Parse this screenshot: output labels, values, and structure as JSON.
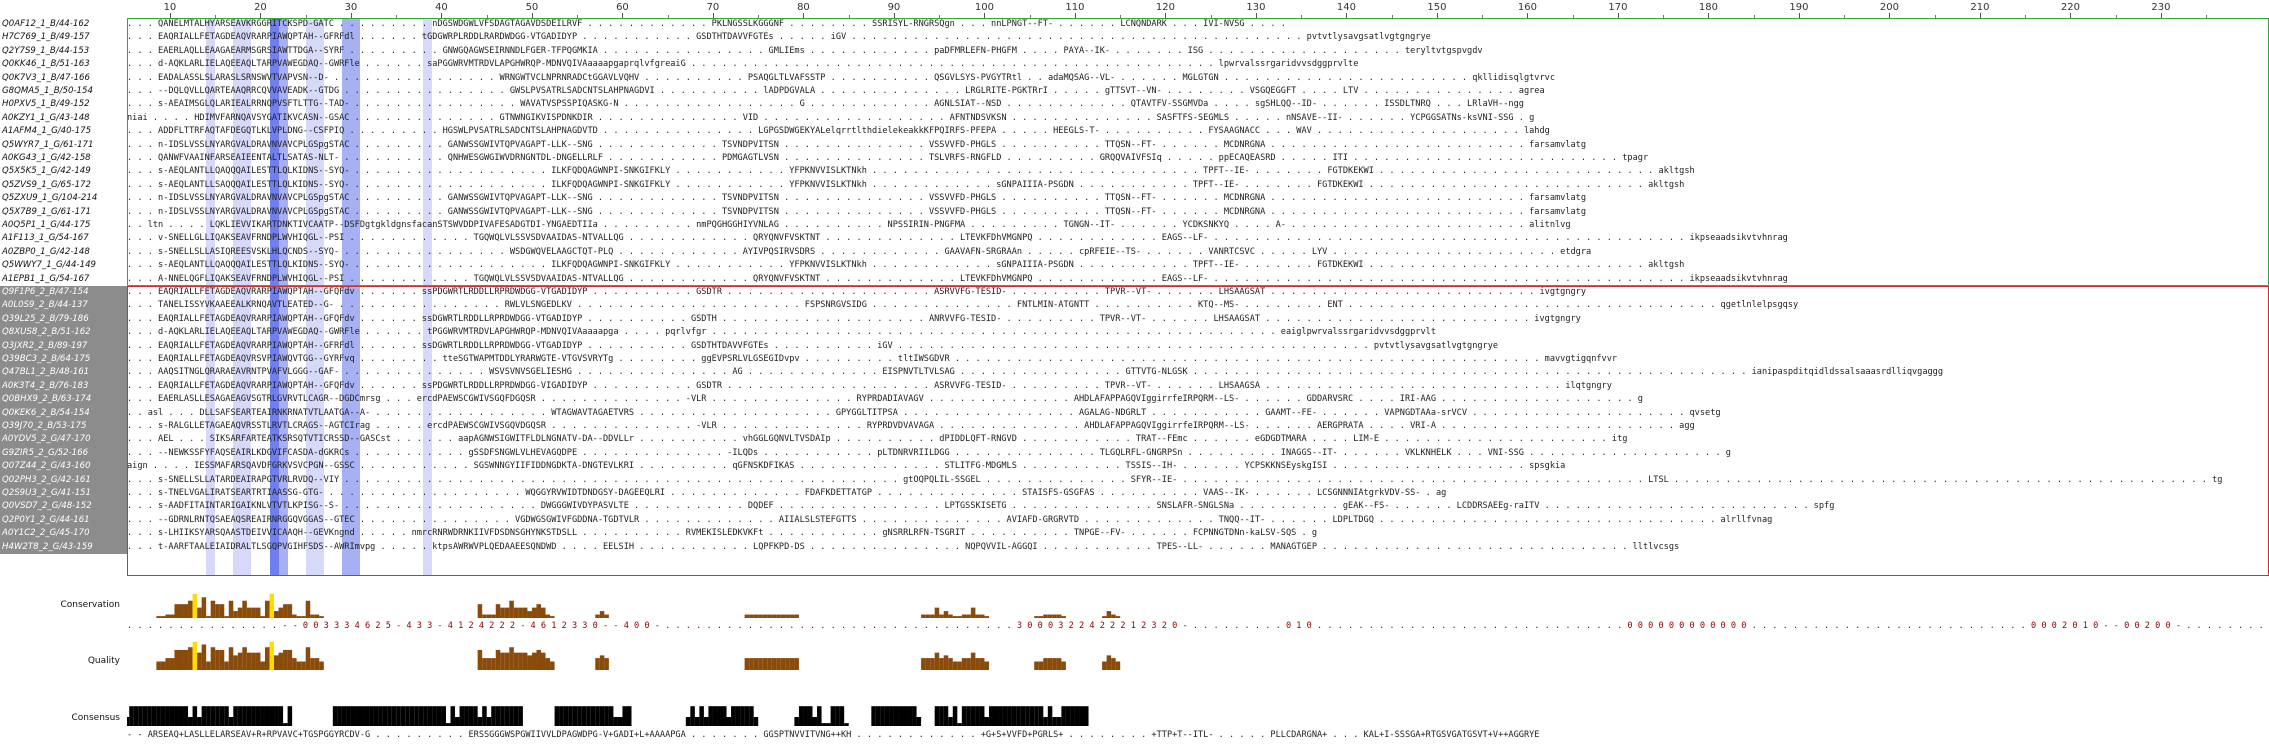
{
  "ruler": {
    "ticks": [
      "10",
      "20",
      "30",
      "40",
      "50",
      "60",
      "70",
      "80",
      "90",
      "100",
      "110",
      "120",
      "130",
      "140",
      "150",
      "160",
      "170",
      "180",
      "190",
      "200",
      "210",
      "220",
      "230"
    ],
    "tick_values": [
      10,
      20,
      30,
      40,
      50,
      60,
      70,
      80,
      90,
      100,
      110,
      120,
      130,
      140,
      150,
      160,
      170,
      180,
      190,
      200,
      210,
      220,
      230
    ]
  },
  "colors": {
    "group1_box": "#33aa33",
    "group2_box": "#cc3333",
    "name_highlight_group2": "#8c8c8c",
    "conserved_blue_strong": "#6f7ff0",
    "conserved_blue_mid": "#a7b0f2",
    "conserved_blue_light": "#d6daf8",
    "conservation_digits": "#8b0000",
    "histogram_brown": "#8a4a0a",
    "histogram_yellow": "#ffdc00",
    "consensus_black": "#000000"
  },
  "highlight_columns": [
    {
      "col": 14,
      "shade": "light"
    },
    {
      "col": 17,
      "shade": "light"
    },
    {
      "col": 18,
      "shade": "light"
    },
    {
      "col": 21,
      "shade": "strong"
    },
    {
      "col": 22,
      "shade": "mid"
    },
    {
      "col": 25,
      "shade": "light"
    },
    {
      "col": 26,
      "shade": "light"
    },
    {
      "col": 29,
      "shade": "mid"
    },
    {
      "col": 30,
      "shade": "mid"
    },
    {
      "col": 38,
      "shade": "light"
    }
  ],
  "sequences": [
    {
      "name": "Q0AF12_1_B/44-162",
      "group": 1,
      "seq": ". . . QANELMTALHYARSEAVKRGGRITCKSPD-GATC . . . . . . . . . nDGSWDGWLVFSDAGTAGAVDSDEILRVF . . . . . . . . . . . . PKLNGSSLKGGGNF . . . . . . . . SSRISYL-RNGRSQgn . . . nnLPNGT--FT- . . . . . . LCNQNDARK . . . IVI-NVSG . . . ."
    },
    {
      "name": "H7C769_1_B/49-157",
      "group": 1,
      "seq": ". . . EAQRIALLFETAGDEAQVRARPIAWQPTAH--GFRFdl . . . . . . tGDGWRPLRDDLRARDWDGG-VTGADIDYP . . . . . . . . . . . GSDTHTDAVVFGTEs . . . . . iGV . . . . . . . . . . . . . . . . . . . . . . . . . . . . . . . . . . . . . . . . . . . . pvtvtlysavgsatlvgtgngrye"
    },
    {
      "name": "Q2Y7S9_1_B/44-153",
      "group": 1,
      "seq": ". . . EAERLAQLLEAAGAEARMSGRSIAWTTDGA--SYRF . . . . . . . . . GNWGQAGWSEIRNNDLFGER-TFPQGMKIA . . . . . . . . . . . . . . . . GMLIEms . . . . . . . . . . . . paDFMRLEFN-PHGFM . . . . PAYA--IK- . . . . . . . ISG . . . . . . . . . . . . . . . . . . . teryltvtgspvgdv"
    },
    {
      "name": "Q0KK46_1_B/51-163",
      "group": 1,
      "seq": ". . . d-AQKLARLIELAQEEAQLTARPVAWEGDAQ--GWRFle . . . . . . saPGGWRVMTRDVLAPGHWRQP-MDNVQIVAaaaapgaprqlvfgreaiG . . . . . . . . . . . . . . . . . . . . . . . . . . . . . . . . . . . . . . . . . . . . . . . . . . . lpwrvalssrgaridvvsdggprvlte"
    },
    {
      "name": "Q0K7V3_1_B/47-166",
      "group": 1,
      "seq": ". . . EADALASSLSLARASLSRNSWVTVAPVSN--D- . . . . . . . . . . . . . . . . WRNGWTVCLNPRNRADCtGGAVLVQHV . . . . . . . . . . PSAQGLTLVAFSSTP . . . . . . . . . . QSGVLSYS-PVGYTRtl . . adaMQSAG--VL- . . . . . . MGLGTGN . . . . . . . . . . . . . . . . . . . . . . . . qkllidisqlgtvrvc"
    },
    {
      "name": "G8QMA5_1_B/50-154",
      "group": 1,
      "seq": ". . . --DQLQVLLQARTEAAQRRCQVVAVEADK--GTDG . . . . . . . . . . . . . . . . GWSLPVSATRLSADCNTSLAHPNAGDVI . . . . . . . . . . lADPDGVALA . . . . . . . . . . . . . . LRGLRITE-PGKTRrI . . . . . gTTSVT--VN- . . . . . . . . VSGQEGGFT . . . . LTV . . . . . . . . . . . . . . . agrea"
    },
    {
      "name": "H0PXV5_1_B/49-152",
      "group": 1,
      "seq": ". . . s-AEAIMSGLQLARIEALRRNQPVSFTLTTG--TAD- . . . . . . . . . . . . . . . . WAVATVSPSSPIQASKG-N . . . . . . . . . . . . . . . . . G . . . . . . . . . . . . AGNLSIAT--NSD . . . . . . . . . . . . QTAVTFV-SSGMVDa . . . . sgSHLQQ--ID- . . . . . . ISSDLTNRQ . . . LRlaVH--ngg"
    },
    {
      "name": "A0KZY1_1_G/43-148",
      "group": 1,
      "seq": "niai . . . . HDIMVFARNQAVSYGATIKVCASN--GSAC . . . . . . . . . . . . . . GTNWNGIKVISPDNKDIR . . . . . . . . . . . . . . VID . . . . . . . . . . . . . . . . . . AFNTNDSVKSN . . . . . . . . . . . . . . SASFTFS-SEGMLS . . . . . nNSAVE--II- . . . . . . YCPGGSATNs-ksVNI-SSG . g"
    },
    {
      "name": "A1AFM4_1_G/40-175",
      "group": 1,
      "seq": ". . . ADDFLTTRFAQTAFDEGQTLKLVPLDNG--CSFPIQ . . . . . . . . . HGSWLPVSATRLSADCNTSLAHPNAGDVTD . . . . . . . . . . . . . . . LGPGSDWGEKYALelqrrtlthdielekeakkKFPQIRFS-PFEPA . . . . . HEEGLS-T- . . . . . . . . . . FYSAAGNACC . . . WAV . . . . . . . . . . . . . . . . . . . . lahdg"
    },
    {
      "name": "Q5WYR7_1_G/61-171",
      "group": 1,
      "seq": ". . . n-IDSLVSSLNYARGVALDRAVNVAVCPLGSpgSTAC . . . . . . . . . GANWSSGWIVTQPVAGAPT-LLK--SNG . . . . . . . . . . . . TSVNDPVITSN . . . . . . . . . . . . . . VSSVVFD-PHGLS . . . . . . . . . . TTQSN--FT- . . . . . . MCDNRGNA . . . . . . . . . . . . . . . . . . . . . . . . . farsamvlatg"
    },
    {
      "name": "A0KG43_1_G/42-158",
      "group": 1,
      "seq": ". . . QANWFVAAINFARSEAIEENTALTLSATAS-NLT- . . . . . . . . . . QNHWESGWGIWVDRNGNTDL-DNGELLRLF . . . . . . . . . . . PDMGAGTLVSN . . . . . . . . . . . . . . TSLVRFS-RNGFLD . . . . . . . . . GRQQVAIVFSIq . . . . . ppECAQEASRD . . . . . ITI . . . . . . . . . . . . . . . . . . . . . . . . . . tpagr"
    },
    {
      "name": "Q5X5K5_1_G/42-149",
      "group": 1,
      "seq": ". . . s-AEQLANTLLQAQQQAILESTTLQLKIDNS--SYQ- . . . . . . . . . . . . . . . . . . . ILKFQDQAGWNPI-SNKGIFKLY . . . . . . . . . . . YFPKNVVISLKTNkh . . . . . . . . . . . . . . . . . . . . . . . . . . . . . . . . TPFT--IE- . . . . . . . FGTDKEKWI . . . . . . . . . . . . . . . . . . . . . . . . . . . akltgsh"
    },
    {
      "name": "Q5ZVS9_1_G/65-172",
      "group": 1,
      "seq": ". . . s-AEQLANTLLSAQQQAILESTTLQLKIDNS--SYQ- . . . . . . . . . . . . . . . . . . . ILKFQDQAGWNPI-SNKGIFKLY . . . . . . . . . . . YFPKNVVISLKTNkh . . . . . . . . . . . . sGNPAIIIA-PSGDN . . . . . . . . . . . TPFT--IE- . . . . . . . FGTDKEKWI . . . . . . . . . . . . . . . . . . . . . . . . . . . akltgsh"
    },
    {
      "name": "Q5ZXU9_1_G/104-214",
      "group": 1,
      "seq": ". . . n-IDSLVSSLNYARGVALDRAVNVAVCPLGSpgSTAC . . . . . . . . . GANWSSGWIVTQPVAGAPT-LLK--SNG . . . . . . . . . . . . TSVNDPVITSN . . . . . . . . . . . . . . VSSVVFD-PHGLS . . . . . . . . . . TTQSN--FT- . . . . . . MCDNRGNA . . . . . . . . . . . . . . . . . . . . . . . . . farsamvlatg"
    },
    {
      "name": "Q5X7B9_1_G/61-171",
      "group": 1,
      "seq": ". . . n-IDSLVSSLNYARGVALDRAVNVAVCPLGSpgSTAC . . . . . . . . . GANWSSGWIVTQPVAGAPT-LLK--SNG . . . . . . . . . . . . TSVNDPVITSN . . . . . . . . . . . . . . VSSVVFD-PHGLS . . . . . . . . . . TTQSN--FT- . . . . . . MCDNRGNA . . . . . . . . . . . . . . . . . . . . . . . . . farsamvlatg"
    },
    {
      "name": "A0Q5P1_1_G/44-175",
      "group": 1,
      "seq": ". . ltn . . . . LQKLIEVVIKARTDNKTIVCAATP--DSFDgtgkldgnsfacanSTSWVDDPIVAFESADGTDI-YNGAEDTIIa . . . . . . . . . nmPQGHGGHIYVNLAG . . . . . . . . . . NPSSIRIN-PNGFMA . . . . . . . . . TGNGN--IT- . . . . . . YCDKSNKYQ . . . . A- . . . . . . . . . . . . . . . . . . . . . . . alitnlvg"
    },
    {
      "name": "A1F113_1_G/54-167",
      "group": 1,
      "seq": ". . . v-SNELLGLLIQAKSEAVFRNDPLWVHIQGL--PSI . . . . . . . . . . . . TGQWQLVLSSVSDVAAIDAS-NTVALLQG . . . . . . . . . . . . QRYQNVFVSKTNT . . . . . . . . . . . . . LTEVKFDhVMGNPQ . . . . . . . . . . . . EAGS--LF- . . . . . . . . . . . . . . . . . . . . . . . . . . . . . . . . . . . . . . . . . . . . . . ikpseaadsikvtvhnrag"
    },
    {
      "name": "A0ZBP0_1_G/42-148",
      "group": 1,
      "seq": ". . . s-SNELLSLLASIQREESVSKLHLQCNDS--SYQ- . . . . . . . . . . . . . . . . WSDGWQVELAAGCTQT-PLQ . . . . . . . . . . . . AYIVPQSIRVSDRS . . . . . . . . . . . . GAAVAFN-SRGRAAn . . . . . cpRFEIE--TS- . . . . . . VANRTCSVC . . . . . LYV . . . . . . . . . . . . . . . . . . . . . . etdgra"
    },
    {
      "name": "Q5WWY7_1_G/44-149",
      "group": 1,
      "seq": ". . . s-AEQLANTLLQAQQQAILESTTLQLKIDNS--SYQ- . . . . . . . . . . . . . . . . . . . ILKFQDQAGWNPI-SNKGIFKLY . . . . . . . . . . . YFPKNVVISLKTNkh . . . . . . . . . . . . sGNPAIIIA-PSGDN . . . . . . . . . . . TPFT--IE- . . . . . . . FGTDKEKWI . . . . . . . . . . . . . . . . . . . . . . . . . . . akltgsh"
    },
    {
      "name": "A1EPB1_1_G/54-167",
      "group": 1,
      "seq": ". . . A-NNELQGFLIQAKSEAVFRNDPLWVHIQGL--PSI . . . . . . . . . . . . TGQWQLVLSSVSDVAAIDAS-NTVALLQG . . . . . . . . . . . . QRYQNVFVSKTNT . . . . . . . . . . . . . LTEVKFDhVMGNPQ . . . . . . . . . . . . EAGS--LF- . . . . . . . . . . . . . . . . . . . . . . . . . . . . . . . . . . . . . . . . . . . . . . ikpseaadsikvtvhnrag"
    },
    {
      "name": "Q9F1P6_2_B/47-154",
      "group": 2,
      "seq": ". . . EAQRIALLFETAGDEAQVRARPIAWQPTAH--GFQFdv . . . . . . ssPDGWRTLRDDLLRPRDWDGG-VTGADIDYP . . . . . . . . . . GSDTR . . . . . . . . . . . . . . . . . . . . ASRVVFG-TESID- . . . . . . . . . TPVR--VT- . . . . . . LHSAAGSAT . . . . . . . . . . . . . . . . . . . . . . . . . . ivgtgngry"
    },
    {
      "name": "A0L0S9_2_B/44-137",
      "group": 2,
      "seq": ". . . TANELISSYVKAAEEALKRNQAVTLEATED--G- . . . . . . . . . . . . . . . . RWLVLSNGEDLKV . . . . . . . . . . . . . . . . . . . . . . FSPSNRGVSIDG . . . . . . . . . . . . . . FNTLMIN-ATGNTT . . . . . . . . . . KTQ--MS- . . . . . . . . ENT . . . . . . . . . . . . . . . . . . . . . . . . . . . . . . . . . . . . qgetlnlelpsgqsy"
    },
    {
      "name": "Q39L25_2_B/79-186",
      "group": 2,
      "seq": ". . . EAQRIALLFETAGDEAQVRARPIAWQPTAH--GFQFdv . . . . . . ssDGWRTLRDDLLRPRDWDGG-VTGADIDYP . . . . . . . . . . GSDTH . . . . . . . . . . . . . . . . . . . . ANRVVFG-TESID- . . . . . . . . . TPVR--VT- . . . . . . LHSAAGSAT . . . . . . . . . . . . . . . . . . . . . . . . . . ivgtgngry"
    },
    {
      "name": "Q8XUS8_2_B/51-162",
      "group": 2,
      "seq": ". . . d-AQKLARLIELAQEEAQLTARPVAWEGDAQ--GWRFle . . . . . . tPGGWRVMTRDVLAPGHWRQP-MDNVQIVAaaaapga . . . . pqrlvfgr . . . . . . . . . . . . . . . . . . . . . . . . . . . . . . . . . . . . . . . . . . . . . . . . . . . . . . . eaiglpwrvalssrgaridvvsdggprvlt"
    },
    {
      "name": "Q3JXR2_2_B/89-197",
      "group": 2,
      "seq": ". . . EAQRIALLFETAGDEAQVRARPIAWQPTAH--GFRFdl . . . . . . ssDGWRTLRDDLLRPRDWDGG-VTGADIDYP . . . . . . . . . . GSDTHTDAVVFGTEs . . . . . . . . . . iGV . . . . . . . . . . . . . . . . . . . . . . . . . . . . . . . . . . . . . . . . . . . . . . pvtvtlysavgsatlvgtgngrye"
    },
    {
      "name": "Q39BC3_2_B/64-175",
      "group": 2,
      "seq": ". . . EAQRIALLFETAGDEAQVRSVPIAWQVTGG--GYRFvq . . . . . . . . tteSGTWAPMTDDLYRARWGTE-VTGVSVRYTg . . . . . . . . ggEVPSRLVLGSEGIDvpv . . . . . . . . . tltIWSGDVR . . . . . . . . . . . . . . . . . . . . . . . . . . . . . . . . . . . . . . . . . . . . . . . . . . . . . . . . . mavvgtigqnfvvr"
    },
    {
      "name": "Q47BL1_2_B/48-161",
      "group": 2,
      "seq": ". . . AAQSITNGLQRARAEAVRNTPVAFVLGGG--GAF- . . . . . . . . . . . . . . WSVSVNVSGELIESHG . . . . . . . . . . . . . . . AG . . . . . . . . . . . . . EISPNVTLTVLSAG . . . . . . . . . . . . . . . . GTTVTG-NLGSK . . . . . . . . . . . . . . . . . . . . . . . . . . . . . . . . . . . . . . . . . . . . . . . . . . . . . . ianipaspditqidldssalsaaasrdlliqvgaggg"
    },
    {
      "name": "A0K3T4_2_B/76-183",
      "group": 2,
      "seq": ". . . EAQRIALLFETAGDEAQVRARPIAWQPTAH--GFQFdv . . . . . . ssPDGWRTLRDDLLRPRDWDGG-VIGADIDYP . . . . . . . . . . GSDTR . . . . . . . . . . . . . . . . . . . . ASRVVFG-TESID- . . . . . . . . . TPVR--VT- . . . . . . LHSAAGSA . . . . . . . . . . . . . . . . . . . . . . . . . . . . . ilqtgngry"
    },
    {
      "name": "Q0BHX9_2_B/63-174",
      "group": 2,
      "seq": ". . . EAERLASLLESAGAEAGVSGTRLGVRVTLCAGR--DGDCmrsg . . . ercdPAEWSCGWIVSGQFDGQSR . . . . . . . . . . . . . . -VLR . . . . . . . . . . . . . . RYPRDADIAVAGV . . . . . . . . . . . . . . AHDLAFAPPAGQVIggirrfeIRPQRM--LS- . . . . . . GDDARVSRC . . . . IRI-AAG . . . . . . . . . . . . . . . . . . . g"
    },
    {
      "name": "Q0KEK6_2_B/54-154",
      "group": 2,
      "seq": ". . asl . . . DLLSAFSEARTEAIRNKRNATVTLAATGA--A- . . . . . . . . . . . . . . . . . WTAGWAVTAGAETVRS . . . . . . . . . . . . . . . . . . . GPYGGLTITPSA . . . . . . . . . . . . . . . . . AGALAG-NDGRLT . . . . . . . . . . . GAAMT--FE- . . . . . . VAPNGDTAAa-srVCV . . . . . . . . . . . . . . . . . . . . . qvsetg"
    },
    {
      "name": "Q39J70_2_B/53-175",
      "group": 2,
      "seq": ". . . s-RALGLLETAGAEAQVRSSTLRVTLCRAGS--AGTCIrag . . . . . ercdPAEWSCGWIVSGQVDGQSR . . . . . . . . . . . . . . -VLR . . . . . . . . . . . . . . RYPRDVDVAVAGA . . . . . . . . . . . . . . AHDLAFAPPAGQVIggirrfeIRPQRM--LS- . . . . . . AERGPRATA . . . . VRI-A . . . . . . . . . . . . . . . . . . . . . . . agg"
    },
    {
      "name": "A0YDV5_2_G/47-170",
      "group": 2,
      "seq": ". . . AEL . . . SIKSARFARTEATKSRSQTVTICRSSD--GASCst . . . . . . aapAGNWSIGWITFLDLNGNATV-DA--DDVLLr . . . . . . . . . . vhGGLGQNVLTVSDAIp . . . . . . . . . . dPIDDLQFT-RNGVD . . . . . . . . . . . TRAT--FEmc . . . . . . eGDGDTMARA . . . . LIM-E . . . . . . . . . . . . . . . . . . . . . . itg"
    },
    {
      "name": "G9ZIR5_2_G/52-166",
      "group": 2,
      "seq": ". . . --NEWKSSFYFAQSEAIRLKDGVIFCASDA-dGKRCs . . . . . . . . . . . gSSDFSNGWLVLHEVAGQDPE . . . . . . . . . . . . . . -ILQDs . . . . . . . . . . . pLTDNRVRIILDGG . . . . . . . . . . . . . . TLGQLRFL-GNGRPSn . . . . . . . . . INAGGS--IT- . . . . . . VKLKNHELK . . . VNI-SSG . . . . . . . . . . . . . . . . . . . g"
    },
    {
      "name": "Q07Z44_2_G/43-160",
      "group": 2,
      "seq": "aign . . . . IESSMAFARSQAVDFGRKVSVCPGN--GSSC . . . . . . . . . . . SGSWNNGYIIFIDDNGDKTA-DNGTEVLKRI . . . . . . . . . qGFNSKDFIKAS . . . . . . . . . . . . . . STLITFG-MDGMLS . . . . . . . . . . TSSIS--IH- . . . . . . YCPSKKNSEyskgISI . . . . . . . . . . . . . . . . . . . spsgkia"
    },
    {
      "name": "Q02PH3_2_G/42-161",
      "group": 2,
      "seq": ". . . s-SNELLSLLATARDEAIRAPGTVRLRVDQ--VIY . . . . . . . . . . . . . . . . . . . . . . . . . . . . . . . . . . . . . . . . . . . . . . . . . . . . . . gtOQPQLIL-SSGEL . . . . . . . . . . . . . . SFYR--IE- . . . . . . . . . . . . . . . . . . . . . . . . . . . . . . . . . . . . . . . . . . . . . LTSL . . . . . . . . . . . . . . . . . . . . . . . . . . . . . . . . . . . . . . . . . . . . . . . . . . . . tg"
    },
    {
      "name": "Q2S9U3_2_G/41-151",
      "group": 2,
      "seq": ". . . s-TNELVGALIRATSEARTRTIAASSG-GTG- . . . . . . . . . . . . . . . . . . . WQGGYRVWIDTDNDGSY-DAGEEQLRI . . . . . . . . . . . . . FDAFKDETTATGP . . . . . . . . . . . . . . STAISFS-GSGFAS . . . . . . . . . . VAAS--IK- . . . . . . LCSGNNNIAtgrkVDV-SS- . ag"
    },
    {
      "name": "Q0VSD7_2_G/48-152",
      "group": 2,
      "seq": ". . . s-AADFITAINTARIGAIKNLVTVTLKPISG--S- . . . . . . . . . . . . . . . . . . . DWGGGWIVDYPASVLTE . . . . . . . . . . . DQDEF . . . . . . . . . . . . . . . . LPTGSSKISETG . . . . . . . . . . . . . . SNSLAFR-SNGLSNa . . . . . . . . . . gEAK--FS- . . . . . . LCDDRSAEEg-raITV . . . . . . . . . . . . . . . . . . . . . . . . . . spfg"
    },
    {
      "name": "Q2P0Y1_2_G/44-161",
      "group": 2,
      "seq": ". . . --GDRNLRNTQSAEAQSREAIRNRGGQVGGAS--GTEC . . . . . . . . . . . . . . . VGDWGSGWIVFGDDNA-TGDTVLR . . . . . . . . . . . . . AIIALSLSTEFGTTS . . . . . . . . . . . . . . AVIAFD-GRGRVTD . . . . . . . . . . . . . TNQQ--IT- . . . . . . LDPLTDGQ . . . . . . . . . . . . . . . . . . . . . . . . . . . . . . . . . alrllfvnag"
    },
    {
      "name": "A0Y1C2_2_G/45-170",
      "group": 2,
      "seq": ". . . s-LHIIKSYARSQAASTDEIVVICAAQH--GEVKngnd . . . . . nmrcRNRWDRNKIIVFDSDNSGHYNKSTDSLL . . . . . . . . . . RVMEKISLEDKVKFt . . . . . . . . . . . gNSRRLRFN-TSGRIT . . . . . . . . . . TNPGE--FV- . . . . . . FCPNNGTDNn-kaLSV-SQS . g"
    },
    {
      "name": "H4W2T8_2_G/43-159",
      "group": 2,
      "seq": ". . . t-AARFTAALEIAIDRALTLSGQPVGIHFSDS--AWRImvpg . . . . . ktpsAWRWVPLQEDAAEESQNDWD . . . . EELSIH . . . . . . . . . . . LQPFKPD-DS . . . . . . . . . . . . . . . NQPQVVIL-AGGQI . . . . . . . . . . . TPES--LL- . . . . . . MANAGTGEP . . . . . . . . . . . . . . . . . . . . . . . . . . . . . . lltlvcsgs"
    }
  ],
  "annotations": {
    "conservation": {
      "label": "Conservation",
      "digits": ". . . . . . . . . . . . . . . - - 0 0 3 3 3 4 6 2 5 - 4 3 3 - 4 1 2 4 2 2 2 - 4 6 1 2 3 3 0 - - 4 0 0 - . . . . . . . . . . . . . . . . . . . . . . . . . . . . . . . . . . 3 0 0 0 3 2 2 4 2 2 2 1 2 3 2 0 - . . . . . . . . . 0 1 0 . . . . . . . . . . . . . . . . . . . . . . . . . . . . . . 0 0 0 0 0 0 0 0 0 0 0 0 . . . . . . . . . . . . . . . . . . . . . . . . . . . 0 0 0 2 0 1 0 - - 0 0 2 0 0 - . . . . . . . . . . - - 0 0 0 0 - . . . . . . . . - 1 0 - . . . . . . . . . . . . . . . . . . . . . . . . . . . . . . . . . . . . . . . . . . . . . . . . . . . . . . ."
    },
    "quality": {
      "label": "Quality"
    },
    "consensus": {
      "label": "Consensus",
      "sequence": "- - ARSEAQ+LASLLELARSEAV+R+RPVAVC+TGSPGGYRCDV-G . . . . . . . . . ERSSGGGWSPGWIIVVLDPAGWDPG-V+GADI+L+AAAAPGA . . . . . . . GGSPTNVVITVNG++KH . . . . . . . . . . . . +G+S+VVFD+PGRLS+ . . . . . . . . +TTP+T--ITL- . . . . . PLLCDARGNA+ . . . KAL+I-SSSGA+RTGSVGATGSVT+V++AGGRYE"
    }
  }
}
